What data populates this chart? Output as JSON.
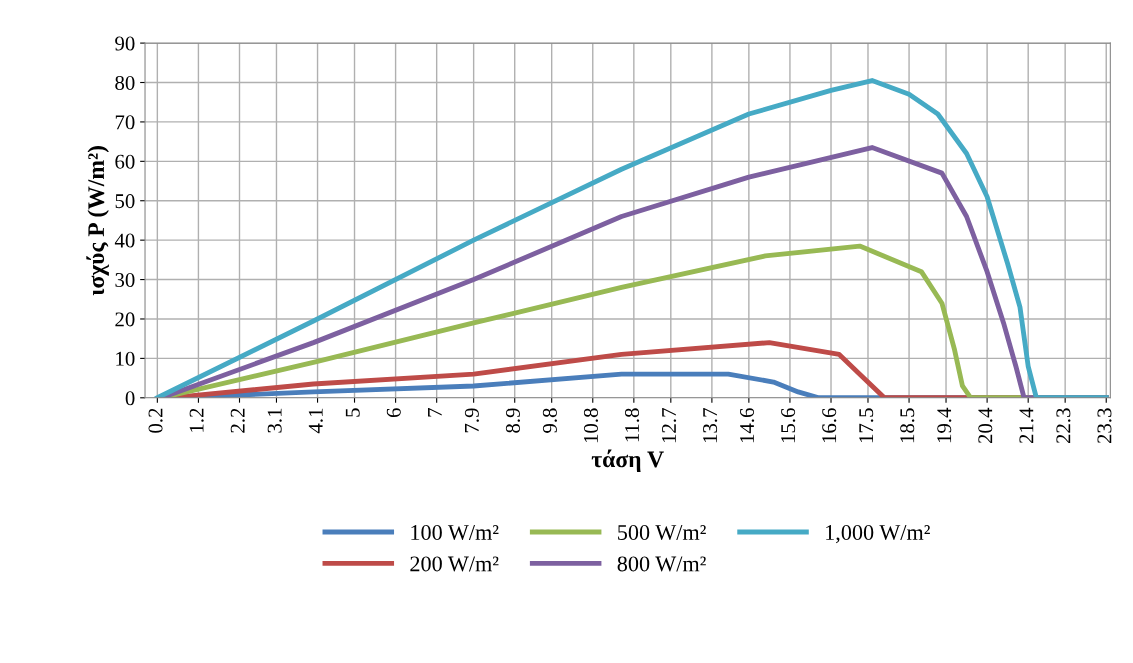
{
  "chart_data": {
    "type": "line",
    "xlabel": "τάση V",
    "ylabel": "ισχύς P (W/m²)",
    "xlim": [
      -0.1,
      23.4
    ],
    "xticks": [
      0.2,
      1.2,
      2.2,
      3.1,
      4.1,
      5,
      6,
      7,
      7.9,
      8.9,
      9.8,
      10.8,
      11.8,
      12.7,
      13.7,
      14.6,
      15.6,
      16.6,
      17.5,
      18.5,
      19.4,
      20.4,
      21.4,
      22.3,
      23.3
    ],
    "ylim": [
      0,
      90
    ],
    "yticks": [
      0,
      10,
      20,
      30,
      40,
      50,
      60,
      70,
      80,
      90
    ],
    "grid": true,
    "legend": "bottom",
    "marker": "none",
    "line_style": "solid",
    "series": [
      {
        "name": "100 W/m²",
        "color": "#4a7ebb",
        "x": [
          0.5,
          4,
          7.9,
          11.5,
          14.1,
          15.2,
          15.8,
          16.3,
          23.3
        ],
        "values": [
          0,
          1.5,
          3,
          6,
          6,
          4,
          1.5,
          0,
          0
        ]
      },
      {
        "name": "200 W/m²",
        "color": "#be4b48",
        "x": [
          0.5,
          4,
          7.9,
          11.5,
          15.1,
          16.8,
          17.3,
          17.9,
          23.3
        ],
        "values": [
          0,
          3.5,
          6,
          11,
          14,
          11,
          6,
          0,
          0
        ]
      },
      {
        "name": "500 W/m²",
        "color": "#98b954",
        "x": [
          0.3,
          4,
          7.9,
          11.5,
          15,
          17.3,
          18.8,
          19.3,
          19.6,
          19.8,
          20,
          23.3
        ],
        "values": [
          0,
          9,
          19,
          28,
          36,
          38.5,
          32,
          24,
          12.5,
          3,
          0,
          0
        ]
      },
      {
        "name": "800 W/m²",
        "color": "#7d60a0",
        "x": [
          0.3,
          4,
          7.9,
          11.5,
          14.6,
          17.6,
          19.3,
          19.9,
          20.4,
          20.8,
          21.1,
          21.3,
          23.3
        ],
        "values": [
          0,
          14,
          30,
          46,
          56,
          63.5,
          57,
          46,
          32,
          19,
          8,
          0,
          0
        ]
      },
      {
        "name": "1,000 W/m²",
        "color": "#46aac5",
        "x": [
          0.2,
          4,
          7.9,
          11.5,
          14.6,
          16.6,
          17.6,
          18.5,
          19.2,
          19.9,
          20.4,
          20.9,
          21.2,
          21.4,
          21.6,
          23.3
        ],
        "values": [
          0,
          19.5,
          40,
          58,
          72,
          78,
          80.5,
          77,
          72,
          62,
          51,
          34,
          23,
          8,
          0,
          0
        ]
      }
    ]
  }
}
